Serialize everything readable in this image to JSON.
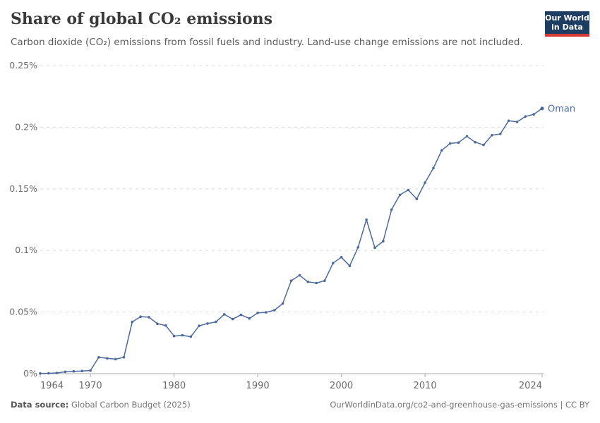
{
  "header": {
    "title": "Share of global CO₂ emissions",
    "subtitle": "Carbon dioxide (CO₂) emissions from fossil fuels and industry. Land-use change emissions are not included.",
    "logo": {
      "line1": "Our World",
      "line2": "in Data"
    }
  },
  "chart_data": {
    "type": "line",
    "title": "Share of global CO₂ emissions",
    "xlabel": "",
    "ylabel": "",
    "xlim": [
      1964,
      2024
    ],
    "ylim": [
      0,
      0.25
    ],
    "grid": "horizontal-dashed",
    "legend_position": "end-of-line-label",
    "x_ticks": [
      1964,
      1970,
      1980,
      1990,
      2000,
      2010,
      2024
    ],
    "y_ticks": [
      {
        "value": 0,
        "label": "0%"
      },
      {
        "value": 0.05,
        "label": "0.05%"
      },
      {
        "value": 0.1,
        "label": "0.1%"
      },
      {
        "value": 0.15,
        "label": "0.15%"
      },
      {
        "value": 0.2,
        "label": "0.2%"
      },
      {
        "value": 0.25,
        "label": "0.25%"
      }
    ],
    "series": [
      {
        "name": "Oman",
        "color": "#4C6A9C",
        "unit": "%",
        "x": [
          1964,
          1965,
          1966,
          1967,
          1968,
          1969,
          1970,
          1971,
          1972,
          1973,
          1974,
          1975,
          1976,
          1977,
          1978,
          1979,
          1980,
          1981,
          1982,
          1983,
          1984,
          1985,
          1986,
          1987,
          1988,
          1989,
          1990,
          1991,
          1992,
          1993,
          1994,
          1995,
          1996,
          1997,
          1998,
          1999,
          2000,
          2001,
          2002,
          2003,
          2004,
          2005,
          2006,
          2007,
          2008,
          2009,
          2010,
          2011,
          2012,
          2013,
          2014,
          2015,
          2016,
          2017,
          2018,
          2019,
          2020,
          2021,
          2022,
          2023,
          2024
        ],
        "values": [
          0.0002,
          0.0003,
          0.0006,
          0.0015,
          0.0019,
          0.0021,
          0.0025,
          0.0133,
          0.0124,
          0.0118,
          0.0133,
          0.042,
          0.0462,
          0.0458,
          0.0405,
          0.0391,
          0.0305,
          0.0311,
          0.03,
          0.0388,
          0.0407,
          0.042,
          0.0481,
          0.0443,
          0.0477,
          0.0448,
          0.0493,
          0.0497,
          0.0515,
          0.0569,
          0.0754,
          0.0798,
          0.0745,
          0.0735,
          0.0754,
          0.0897,
          0.0945,
          0.0874,
          0.1025,
          0.125,
          0.1021,
          0.1075,
          0.1331,
          0.1451,
          0.149,
          0.1417,
          0.155,
          0.1668,
          0.1812,
          0.1868,
          0.1875,
          0.1926,
          0.1878,
          0.1856,
          0.1935,
          0.1945,
          0.2052,
          0.2043,
          0.2087,
          0.2104,
          0.2152
        ]
      }
    ]
  },
  "footer": {
    "datasource_label": "Data source:",
    "datasource_value": " Global Carbon Budget (2025)",
    "rights": "OurWorldinData.org/co2-and-greenhouse-gas-emissions | CC BY"
  },
  "colors": {
    "accent": "#4C6A9C",
    "logo_bg": "#1d3d63",
    "logo_stripe": "#d73a34",
    "grid": "#dcdcdc",
    "baseline": "#a8a8a8",
    "axis_text": "#6b6b6b"
  }
}
